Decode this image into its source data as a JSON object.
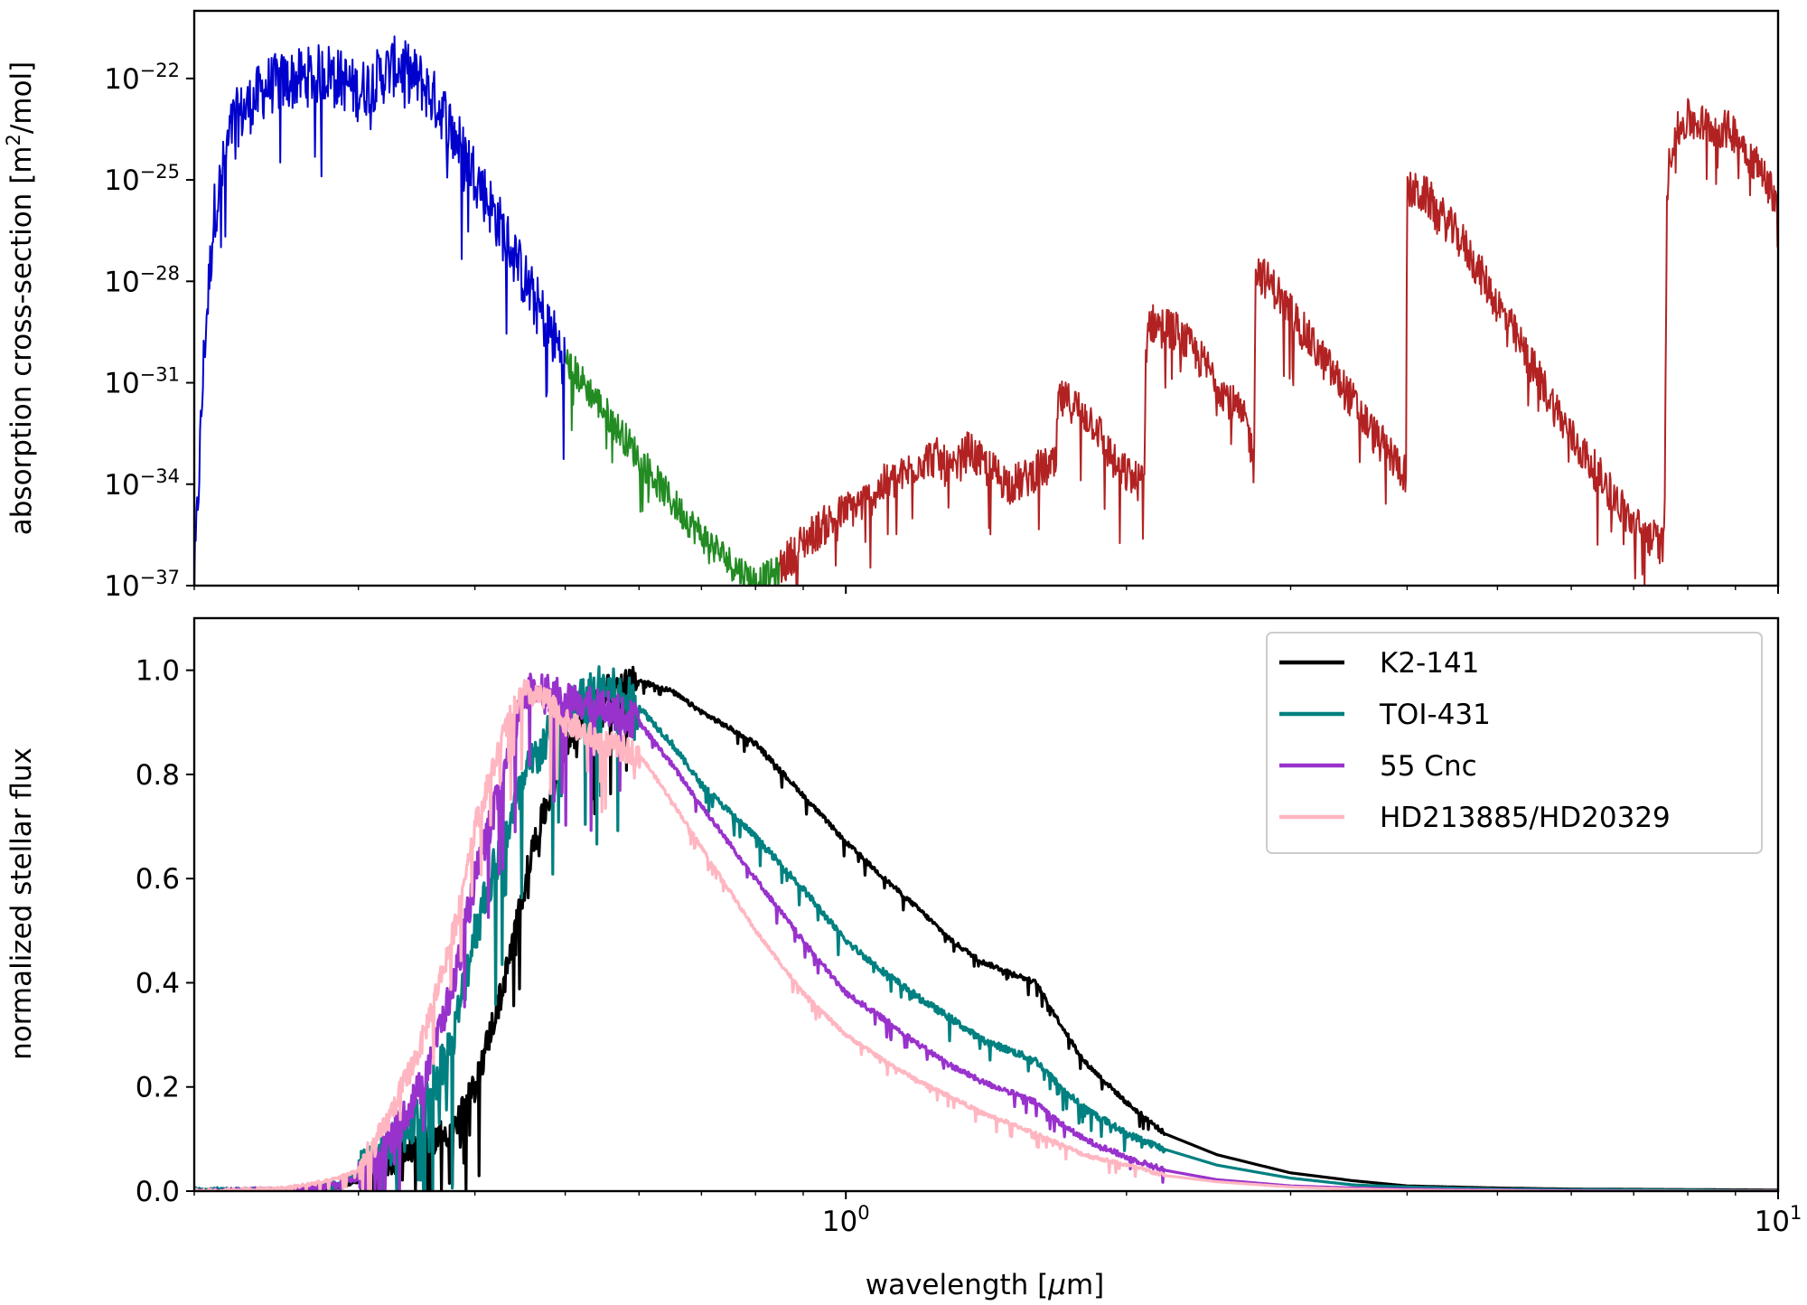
{
  "chart_data": [
    {
      "type": "line",
      "panel": "top",
      "ylabel": "absorption cross-section [m",
      "ylabel_sup": "2",
      "ylabel_tail": "/mol]",
      "xscale": "log",
      "yscale": "log",
      "xlim": [
        0.2,
        10
      ],
      "ylim_exp": [
        -37,
        -20
      ],
      "yticks": [
        {
          "base": "10",
          "exp": "−22",
          "value": -22
        },
        {
          "base": "10",
          "exp": "−25",
          "value": -25
        },
        {
          "base": "10",
          "exp": "−28",
          "value": -28
        },
        {
          "base": "10",
          "exp": "−31",
          "value": -31
        },
        {
          "base": "10",
          "exp": "−34",
          "value": -34
        },
        {
          "base": "10",
          "exp": "−37",
          "value": -37
        }
      ],
      "series": [
        {
          "color": "#0000cd",
          "noise": 0.9,
          "x": [
            0.2,
            0.205,
            0.21,
            0.22,
            0.24,
            0.26,
            0.28,
            0.3,
            0.33,
            0.35,
            0.37,
            0.4,
            0.43,
            0.46,
            0.5
          ],
          "y": [
            -37,
            -30,
            -26,
            -23.3,
            -22.2,
            -22.0,
            -21.8,
            -22.4,
            -21.6,
            -22.1,
            -23.0,
            -24.8,
            -26.6,
            -28.4,
            -30.3
          ]
        },
        {
          "color": "#228b22",
          "noise": 0.5,
          "x": [
            0.5,
            0.55,
            0.6,
            0.65,
            0.7,
            0.75,
            0.8,
            0.85
          ],
          "y": [
            -30.3,
            -31.8,
            -33.2,
            -34.5,
            -35.5,
            -36.3,
            -36.9,
            -36.6
          ]
        },
        {
          "color": "#b22222",
          "noise": 0.6,
          "x": [
            0.85,
            0.9,
            0.95,
            1.0,
            1.05,
            1.1,
            1.15,
            1.2,
            1.25,
            1.3,
            1.35,
            1.4,
            1.45,
            1.5,
            1.55,
            1.6,
            1.65,
            1.68,
            1.69,
            1.75,
            1.85,
            1.95,
            2.05,
            2.09,
            2.1,
            2.25,
            2.45,
            2.7,
            2.74,
            2.75,
            2.9,
            3.15,
            3.45,
            3.7,
            3.99,
            4.0,
            4.2,
            4.6,
            5.2,
            6.0,
            7.0,
            7.5,
            7.55,
            7.6,
            7.7,
            8.0,
            8.4,
            9.0,
            9.5,
            10.0
          ],
          "y": [
            -36.5,
            -35.7,
            -35.2,
            -34.8,
            -34.5,
            -34.0,
            -33.8,
            -33.3,
            -33.2,
            -33.7,
            -33.0,
            -33.4,
            -33.7,
            -34.0,
            -33.9,
            -33.6,
            -33.5,
            -33.5,
            -31.5,
            -31.6,
            -32.2,
            -33.5,
            -33.9,
            -33.9,
            -29.2,
            -29.4,
            -30.6,
            -32.3,
            -33.5,
            -27.6,
            -28.3,
            -29.8,
            -31.3,
            -32.6,
            -33.7,
            -25.3,
            -25.5,
            -26.9,
            -29.5,
            -32.6,
            -35.2,
            -35.8,
            -35.8,
            -25.2,
            -23.8,
            -23.2,
            -23.4,
            -23.6,
            -24.6,
            -25.6
          ]
        }
      ]
    },
    {
      "type": "line",
      "panel": "bottom",
      "xlabel": "wavelength [",
      "xlabel_mu": "μ",
      "xlabel_tail": "m]",
      "ylabel": "normalized stellar flux",
      "xscale": "log",
      "xlim": [
        0.2,
        10
      ],
      "ylim": [
        0,
        1.1
      ],
      "yticks": [
        "0.0",
        "0.2",
        "0.4",
        "0.6",
        "0.8",
        "1.0"
      ],
      "xticks": [
        {
          "base": "10",
          "exp": "0",
          "value": 1
        },
        {
          "base": "10",
          "exp": "1",
          "value": 10
        }
      ],
      "legend_position": "top-right",
      "series": [
        {
          "name": "K2-141",
          "color": "#000000",
          "noise": 0.06,
          "x": [
            0.2,
            0.25,
            0.28,
            0.3,
            0.32,
            0.35,
            0.38,
            0.4,
            0.43,
            0.46,
            0.5,
            0.55,
            0.6,
            0.65,
            0.7,
            0.8,
            0.9,
            1.0,
            1.1,
            1.2,
            1.3,
            1.4,
            1.5,
            1.6,
            1.7,
            1.8,
            2.0,
            2.2,
            2.5,
            3.0,
            3.5,
            4.0,
            5.0,
            6.0,
            8.0,
            10.0
          ],
          "y": [
            0.0,
            0.0,
            0.005,
            0.02,
            0.05,
            0.09,
            0.12,
            0.2,
            0.4,
            0.65,
            0.85,
            0.96,
            0.98,
            0.96,
            0.92,
            0.86,
            0.76,
            0.67,
            0.6,
            0.54,
            0.48,
            0.44,
            0.42,
            0.4,
            0.32,
            0.25,
            0.17,
            0.11,
            0.07,
            0.035,
            0.02,
            0.01,
            0.006,
            0.004,
            0.003,
            0.002
          ]
        },
        {
          "name": "TOI-431",
          "color": "#008080",
          "noise": 0.09,
          "x": [
            0.2,
            0.25,
            0.28,
            0.3,
            0.32,
            0.35,
            0.38,
            0.4,
            0.43,
            0.46,
            0.5,
            0.55,
            0.6,
            0.65,
            0.7,
            0.8,
            0.9,
            1.0,
            1.1,
            1.2,
            1.3,
            1.4,
            1.5,
            1.6,
            1.7,
            1.8,
            2.0,
            2.2,
            2.5,
            3.0,
            3.5,
            4.0,
            5.0,
            6.0,
            8.0,
            10.0
          ],
          "y": [
            0.0,
            0.0,
            0.01,
            0.03,
            0.07,
            0.15,
            0.3,
            0.5,
            0.68,
            0.82,
            0.92,
            0.97,
            0.93,
            0.86,
            0.78,
            0.68,
            0.58,
            0.48,
            0.42,
            0.37,
            0.33,
            0.29,
            0.27,
            0.25,
            0.2,
            0.16,
            0.11,
            0.08,
            0.05,
            0.025,
            0.012,
            0.008,
            0.004,
            0.003,
            0.002,
            0.0
          ]
        },
        {
          "name": "55 Cnc",
          "color": "#9932cc",
          "noise": 0.07,
          "x": [
            0.2,
            0.25,
            0.28,
            0.3,
            0.32,
            0.35,
            0.38,
            0.4,
            0.43,
            0.45,
            0.47,
            0.5,
            0.55,
            0.6,
            0.65,
            0.7,
            0.8,
            0.9,
            1.0,
            1.1,
            1.2,
            1.3,
            1.4,
            1.5,
            1.6,
            1.7,
            1.8,
            2.0,
            2.2,
            2.5,
            3.0,
            3.5,
            4.0,
            5.0,
            6.0,
            8.0,
            10.0
          ],
          "y": [
            0.0,
            0.002,
            0.01,
            0.025,
            0.08,
            0.2,
            0.4,
            0.6,
            0.8,
            0.95,
            0.97,
            0.94,
            0.93,
            0.9,
            0.82,
            0.74,
            0.6,
            0.48,
            0.38,
            0.33,
            0.28,
            0.24,
            0.21,
            0.19,
            0.17,
            0.13,
            0.1,
            0.065,
            0.04,
            0.022,
            0.01,
            0.006,
            0.004,
            0.002,
            0.001,
            0.0,
            0.0
          ]
        },
        {
          "name": "HD213885/HD20329",
          "color": "#ffb6c1",
          "noise": 0.05,
          "x": [
            0.2,
            0.25,
            0.28,
            0.3,
            0.32,
            0.35,
            0.38,
            0.4,
            0.43,
            0.45,
            0.48,
            0.5,
            0.55,
            0.6,
            0.65,
            0.7,
            0.8,
            0.9,
            1.0,
            1.1,
            1.2,
            1.3,
            1.4,
            1.5,
            1.6,
            1.7,
            1.8,
            2.0,
            2.2,
            2.5,
            3.0,
            3.5,
            4.0,
            5.0,
            6.0,
            8.0,
            10.0
          ],
          "y": [
            0.0,
            0.005,
            0.02,
            0.04,
            0.12,
            0.28,
            0.5,
            0.7,
            0.88,
            0.96,
            0.94,
            0.9,
            0.86,
            0.84,
            0.75,
            0.66,
            0.5,
            0.38,
            0.3,
            0.25,
            0.21,
            0.18,
            0.15,
            0.13,
            0.11,
            0.09,
            0.07,
            0.05,
            0.03,
            0.018,
            0.008,
            0.004,
            0.002,
            0.001,
            0.0,
            0.0,
            0.0
          ]
        }
      ]
    }
  ]
}
